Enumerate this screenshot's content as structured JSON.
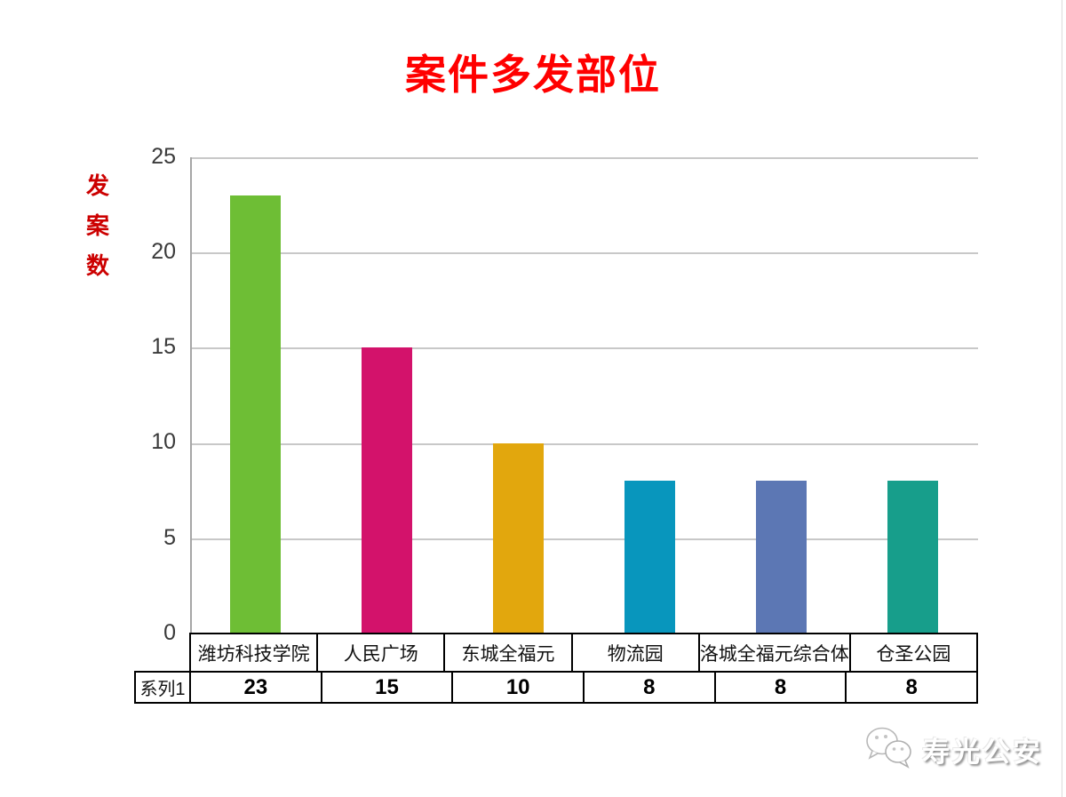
{
  "chart_data": {
    "type": "bar",
    "title": "案件多发部位",
    "ylabel": "发案数",
    "ylabel_chars": [
      "发",
      "案",
      "数"
    ],
    "series_name": "系列1",
    "categories": [
      "潍坊科技学院",
      "人民广场",
      "东城全福元",
      "物流园",
      "洛城全福元综合体",
      "仓圣公园"
    ],
    "values": [
      23,
      15,
      10,
      8,
      8,
      8
    ],
    "bar_colors": [
      "#6EBE35",
      "#D3126B",
      "#E2A70D",
      "#0896BD",
      "#5C77B4",
      "#179E8B"
    ],
    "yticks": [
      25,
      20,
      15,
      10,
      5,
      0
    ],
    "ylim": [
      0,
      25
    ],
    "grid": true,
    "legend_position": "data-table-below-axis",
    "title_color": "#FF0000",
    "ylabel_color": "#CC0000",
    "gridline_color": "#C8C8C8",
    "axis_color": "#A6A6A6"
  },
  "watermark": {
    "text": "寿光公安",
    "icon": "wechat-icon"
  }
}
